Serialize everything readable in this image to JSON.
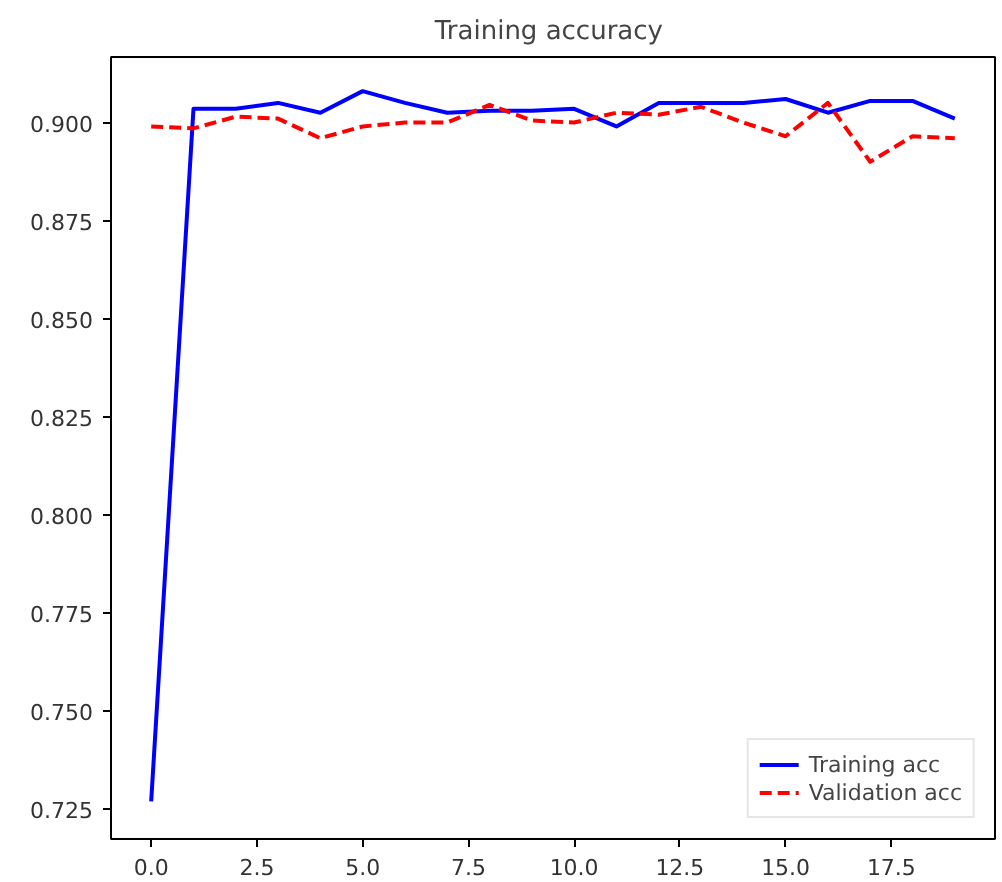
{
  "chart_data": {
    "type": "line",
    "title": "Training  accuracy",
    "x": [
      0,
      1,
      2,
      3,
      4,
      5,
      6,
      7,
      8,
      9,
      10,
      11,
      12,
      13,
      14,
      15,
      16,
      17,
      18,
      19
    ],
    "series": [
      {
        "name": "Training acc",
        "color": "#0000ff",
        "line_style": "solid",
        "values": [
          0.727,
          0.9035,
          0.9035,
          0.905,
          0.9025,
          0.908,
          0.905,
          0.9025,
          0.903,
          0.903,
          0.9035,
          0.899,
          0.905,
          0.905,
          0.905,
          0.906,
          0.9025,
          0.9055,
          0.9055,
          0.901
        ]
      },
      {
        "name": "Validation acc",
        "color": "#ff0000",
        "line_style": "dashed",
        "values": [
          0.899,
          0.8985,
          0.9015,
          0.901,
          0.896,
          0.899,
          0.9,
          0.9,
          0.9045,
          0.9005,
          0.9,
          0.9025,
          0.902,
          0.904,
          0.9,
          0.8965,
          0.905,
          0.89,
          0.8965,
          0.896
        ]
      }
    ],
    "xlim": [
      -0.95,
      19.95
    ],
    "ylim": [
      0.7174,
      0.9167
    ],
    "xticks": [
      {
        "value": 0,
        "label": "0.0"
      },
      {
        "value": 2.5,
        "label": "2.5"
      },
      {
        "value": 5,
        "label": "5.0"
      },
      {
        "value": 7.5,
        "label": "7.5"
      },
      {
        "value": 10,
        "label": "10.0"
      },
      {
        "value": 12.5,
        "label": "12.5"
      },
      {
        "value": 15,
        "label": "15.0"
      },
      {
        "value": 17.5,
        "label": "17.5"
      }
    ],
    "yticks": [
      {
        "value": 0.725,
        "label": "0.725"
      },
      {
        "value": 0.75,
        "label": "0.750"
      },
      {
        "value": 0.775,
        "label": "0.775"
      },
      {
        "value": 0.8,
        "label": "0.800"
      },
      {
        "value": 0.825,
        "label": "0.825"
      },
      {
        "value": 0.85,
        "label": "0.850"
      },
      {
        "value": 0.875,
        "label": "0.875"
      },
      {
        "value": 0.9,
        "label": "0.900"
      }
    ],
    "grid": false,
    "legend": "bottom right"
  }
}
